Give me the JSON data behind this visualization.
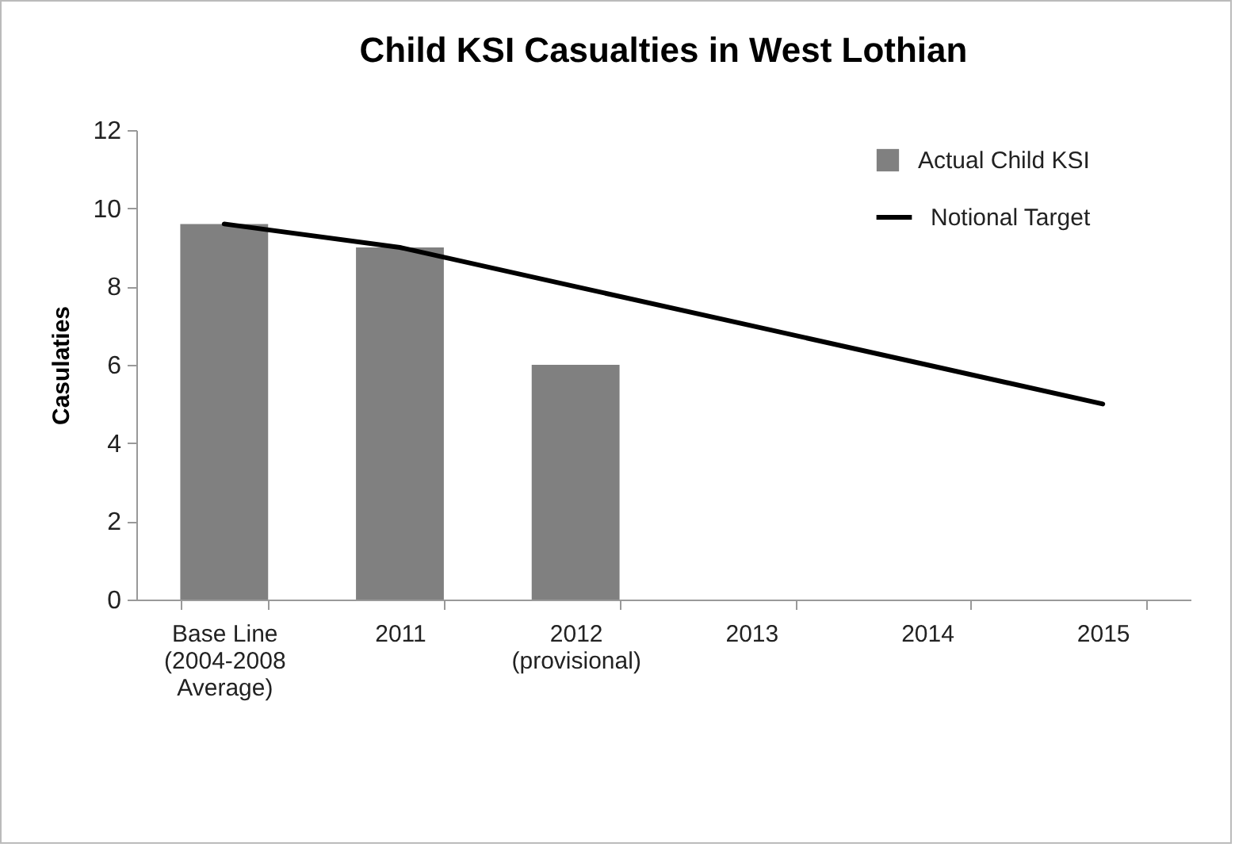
{
  "chart_data": {
    "type": "bar",
    "title": "Child KSI Casualties in West Lothian",
    "ylabel": "Casulaties",
    "categories": [
      "Base Line\n(2004-2008\nAverage)",
      "2011",
      "2012\n(provisional)",
      "2013",
      "2014",
      "2015"
    ],
    "series": [
      {
        "name": "Actual Child KSI",
        "color": "#808080",
        "values": [
          9.6,
          9,
          6,
          null,
          null,
          null
        ]
      },
      {
        "name": "Notional Target",
        "type": "line",
        "color": "#000000",
        "values": [
          9.6,
          9,
          8,
          7,
          6,
          5
        ]
      }
    ],
    "ylim": [
      0,
      12
    ],
    "yticks": [
      0,
      2,
      4,
      6,
      8,
      10,
      12
    ],
    "legend": "top right"
  }
}
